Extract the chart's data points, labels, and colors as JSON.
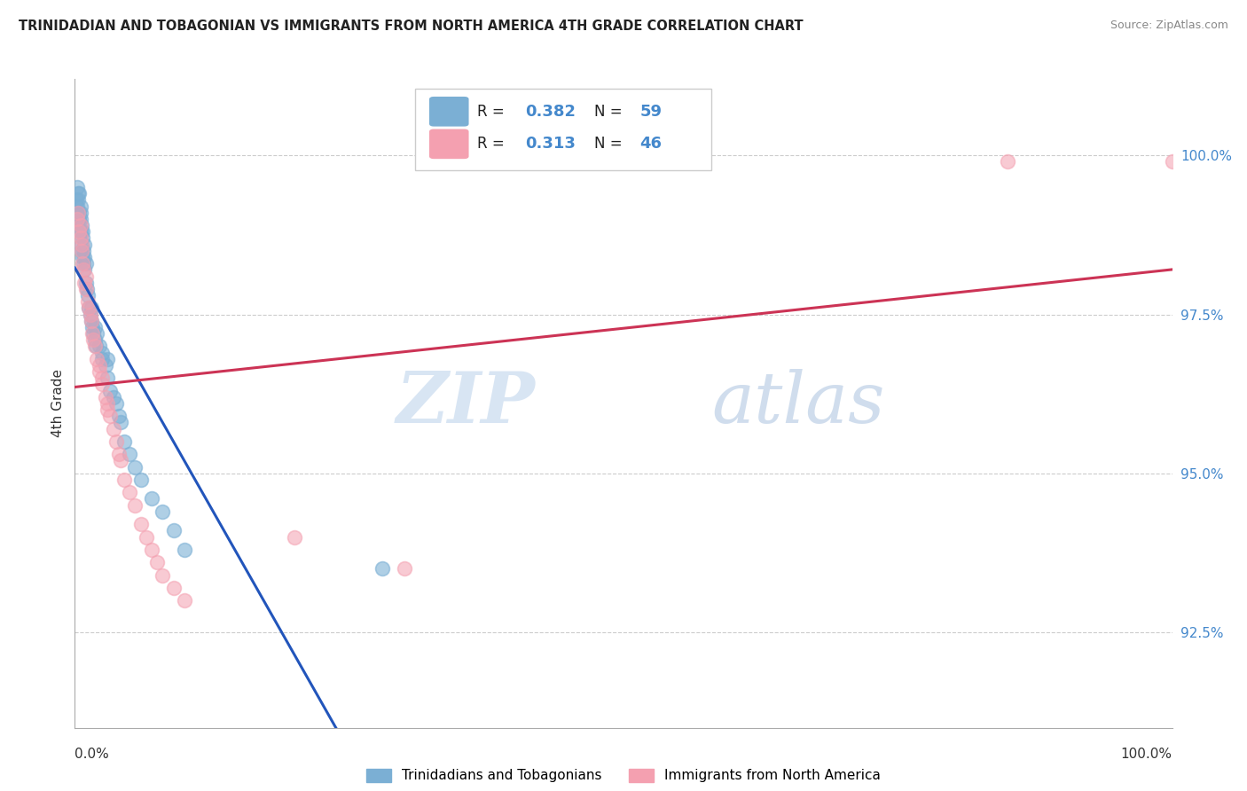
{
  "title": "TRINIDADIAN AND TOBAGONIAN VS IMMIGRANTS FROM NORTH AMERICA 4TH GRADE CORRELATION CHART",
  "source": "Source: ZipAtlas.com",
  "ylabel": "4th Grade",
  "y_ticks": [
    92.5,
    95.0,
    97.5,
    100.0
  ],
  "y_tick_labels": [
    "92.5%",
    "95.0%",
    "97.5%",
    "100.0%"
  ],
  "xlim": [
    0.0,
    1.0
  ],
  "ylim": [
    91.0,
    101.2
  ],
  "blue_R": "0.382",
  "blue_N": "59",
  "pink_R": "0.313",
  "pink_N": "46",
  "blue_color": "#7bafd4",
  "pink_color": "#f4a0b0",
  "blue_line_color": "#2255bb",
  "pink_line_color": "#cc3355",
  "watermark_zip": "ZIP",
  "watermark_atlas": "atlas",
  "legend_label_blue": "Trinidadians and Tobagonians",
  "legend_label_pink": "Immigrants from North America",
  "tick_color": "#4488cc",
  "blue_scatter_x": [
    0.001,
    0.001,
    0.002,
    0.002,
    0.003,
    0.003,
    0.003,
    0.004,
    0.004,
    0.004,
    0.005,
    0.005,
    0.005,
    0.005,
    0.006,
    0.006,
    0.006,
    0.007,
    0.007,
    0.007,
    0.008,
    0.008,
    0.009,
    0.009,
    0.009,
    0.01,
    0.01,
    0.011,
    0.012,
    0.013,
    0.014,
    0.015,
    0.015,
    0.016,
    0.017,
    0.018,
    0.018,
    0.019,
    0.02,
    0.022,
    0.025,
    0.025,
    0.028,
    0.03,
    0.03,
    0.032,
    0.035,
    0.038,
    0.04,
    0.042,
    0.045,
    0.05,
    0.055,
    0.06,
    0.07,
    0.08,
    0.09,
    0.1,
    0.28
  ],
  "blue_scatter_y": [
    99.1,
    99.3,
    99.2,
    99.5,
    99.3,
    99.0,
    99.4,
    99.0,
    99.1,
    99.4,
    98.8,
    99.0,
    99.1,
    99.2,
    98.5,
    98.6,
    98.9,
    98.4,
    98.7,
    98.8,
    98.3,
    98.5,
    98.2,
    98.4,
    98.6,
    98.0,
    98.3,
    97.9,
    97.8,
    97.6,
    97.5,
    97.4,
    97.6,
    97.3,
    97.2,
    97.1,
    97.3,
    97.0,
    97.2,
    97.0,
    96.8,
    96.9,
    96.7,
    96.5,
    96.8,
    96.3,
    96.2,
    96.1,
    95.9,
    95.8,
    95.5,
    95.3,
    95.1,
    94.9,
    94.6,
    94.4,
    94.1,
    93.8,
    93.5
  ],
  "pink_scatter_x": [
    0.002,
    0.003,
    0.004,
    0.005,
    0.005,
    0.006,
    0.006,
    0.007,
    0.008,
    0.009,
    0.01,
    0.01,
    0.012,
    0.013,
    0.014,
    0.015,
    0.016,
    0.017,
    0.018,
    0.02,
    0.022,
    0.022,
    0.025,
    0.025,
    0.028,
    0.03,
    0.03,
    0.032,
    0.035,
    0.038,
    0.04,
    0.042,
    0.045,
    0.05,
    0.055,
    0.06,
    0.065,
    0.07,
    0.075,
    0.08,
    0.09,
    0.1,
    0.2,
    0.3,
    0.85,
    1.0
  ],
  "pink_scatter_y": [
    99.0,
    99.1,
    98.8,
    98.7,
    98.9,
    98.5,
    98.6,
    98.3,
    98.2,
    98.0,
    97.9,
    98.1,
    97.7,
    97.6,
    97.5,
    97.4,
    97.2,
    97.1,
    97.0,
    96.8,
    96.7,
    96.6,
    96.5,
    96.4,
    96.2,
    96.1,
    96.0,
    95.9,
    95.7,
    95.5,
    95.3,
    95.2,
    94.9,
    94.7,
    94.5,
    94.2,
    94.0,
    93.8,
    93.6,
    93.4,
    93.2,
    93.0,
    94.0,
    93.5,
    99.9,
    99.9
  ]
}
